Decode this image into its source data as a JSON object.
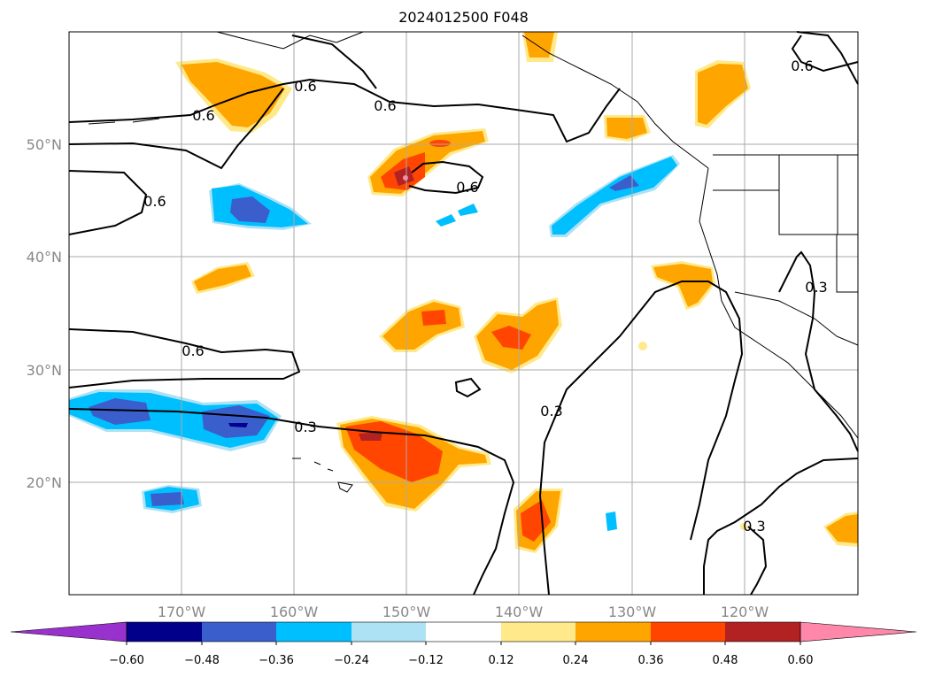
{
  "title": "2024012500 F048",
  "map": {
    "lon_range": [
      -180,
      -110
    ],
    "lat_range": [
      10,
      60
    ],
    "lat_labels": [
      "50°N",
      "40°N",
      "30°N",
      "20°N"
    ],
    "lon_labels": [
      "170°W",
      "160°W",
      "150°W",
      "140°W",
      "130°W",
      "120°W"
    ],
    "contour_labels": [
      "0.6",
      "0.6",
      "0.6",
      "0.6",
      "0.6",
      "0.6",
      "0.6",
      "0.3",
      "0.3",
      "0.3",
      "0.3"
    ]
  },
  "colorbar": {
    "ticks": [
      "−0.60",
      "−0.48",
      "−0.36",
      "−0.24",
      "−0.12",
      "0.12",
      "0.24",
      "0.36",
      "0.48",
      "0.60"
    ],
    "colors": [
      "#9932cc",
      "#00008b",
      "#3a5fcd",
      "#00bfff",
      "#ade2f5",
      "#ffffff",
      "#ffe98a",
      "#ffa500",
      "#ff4500",
      "#b22222",
      "#ff88aa"
    ]
  }
}
